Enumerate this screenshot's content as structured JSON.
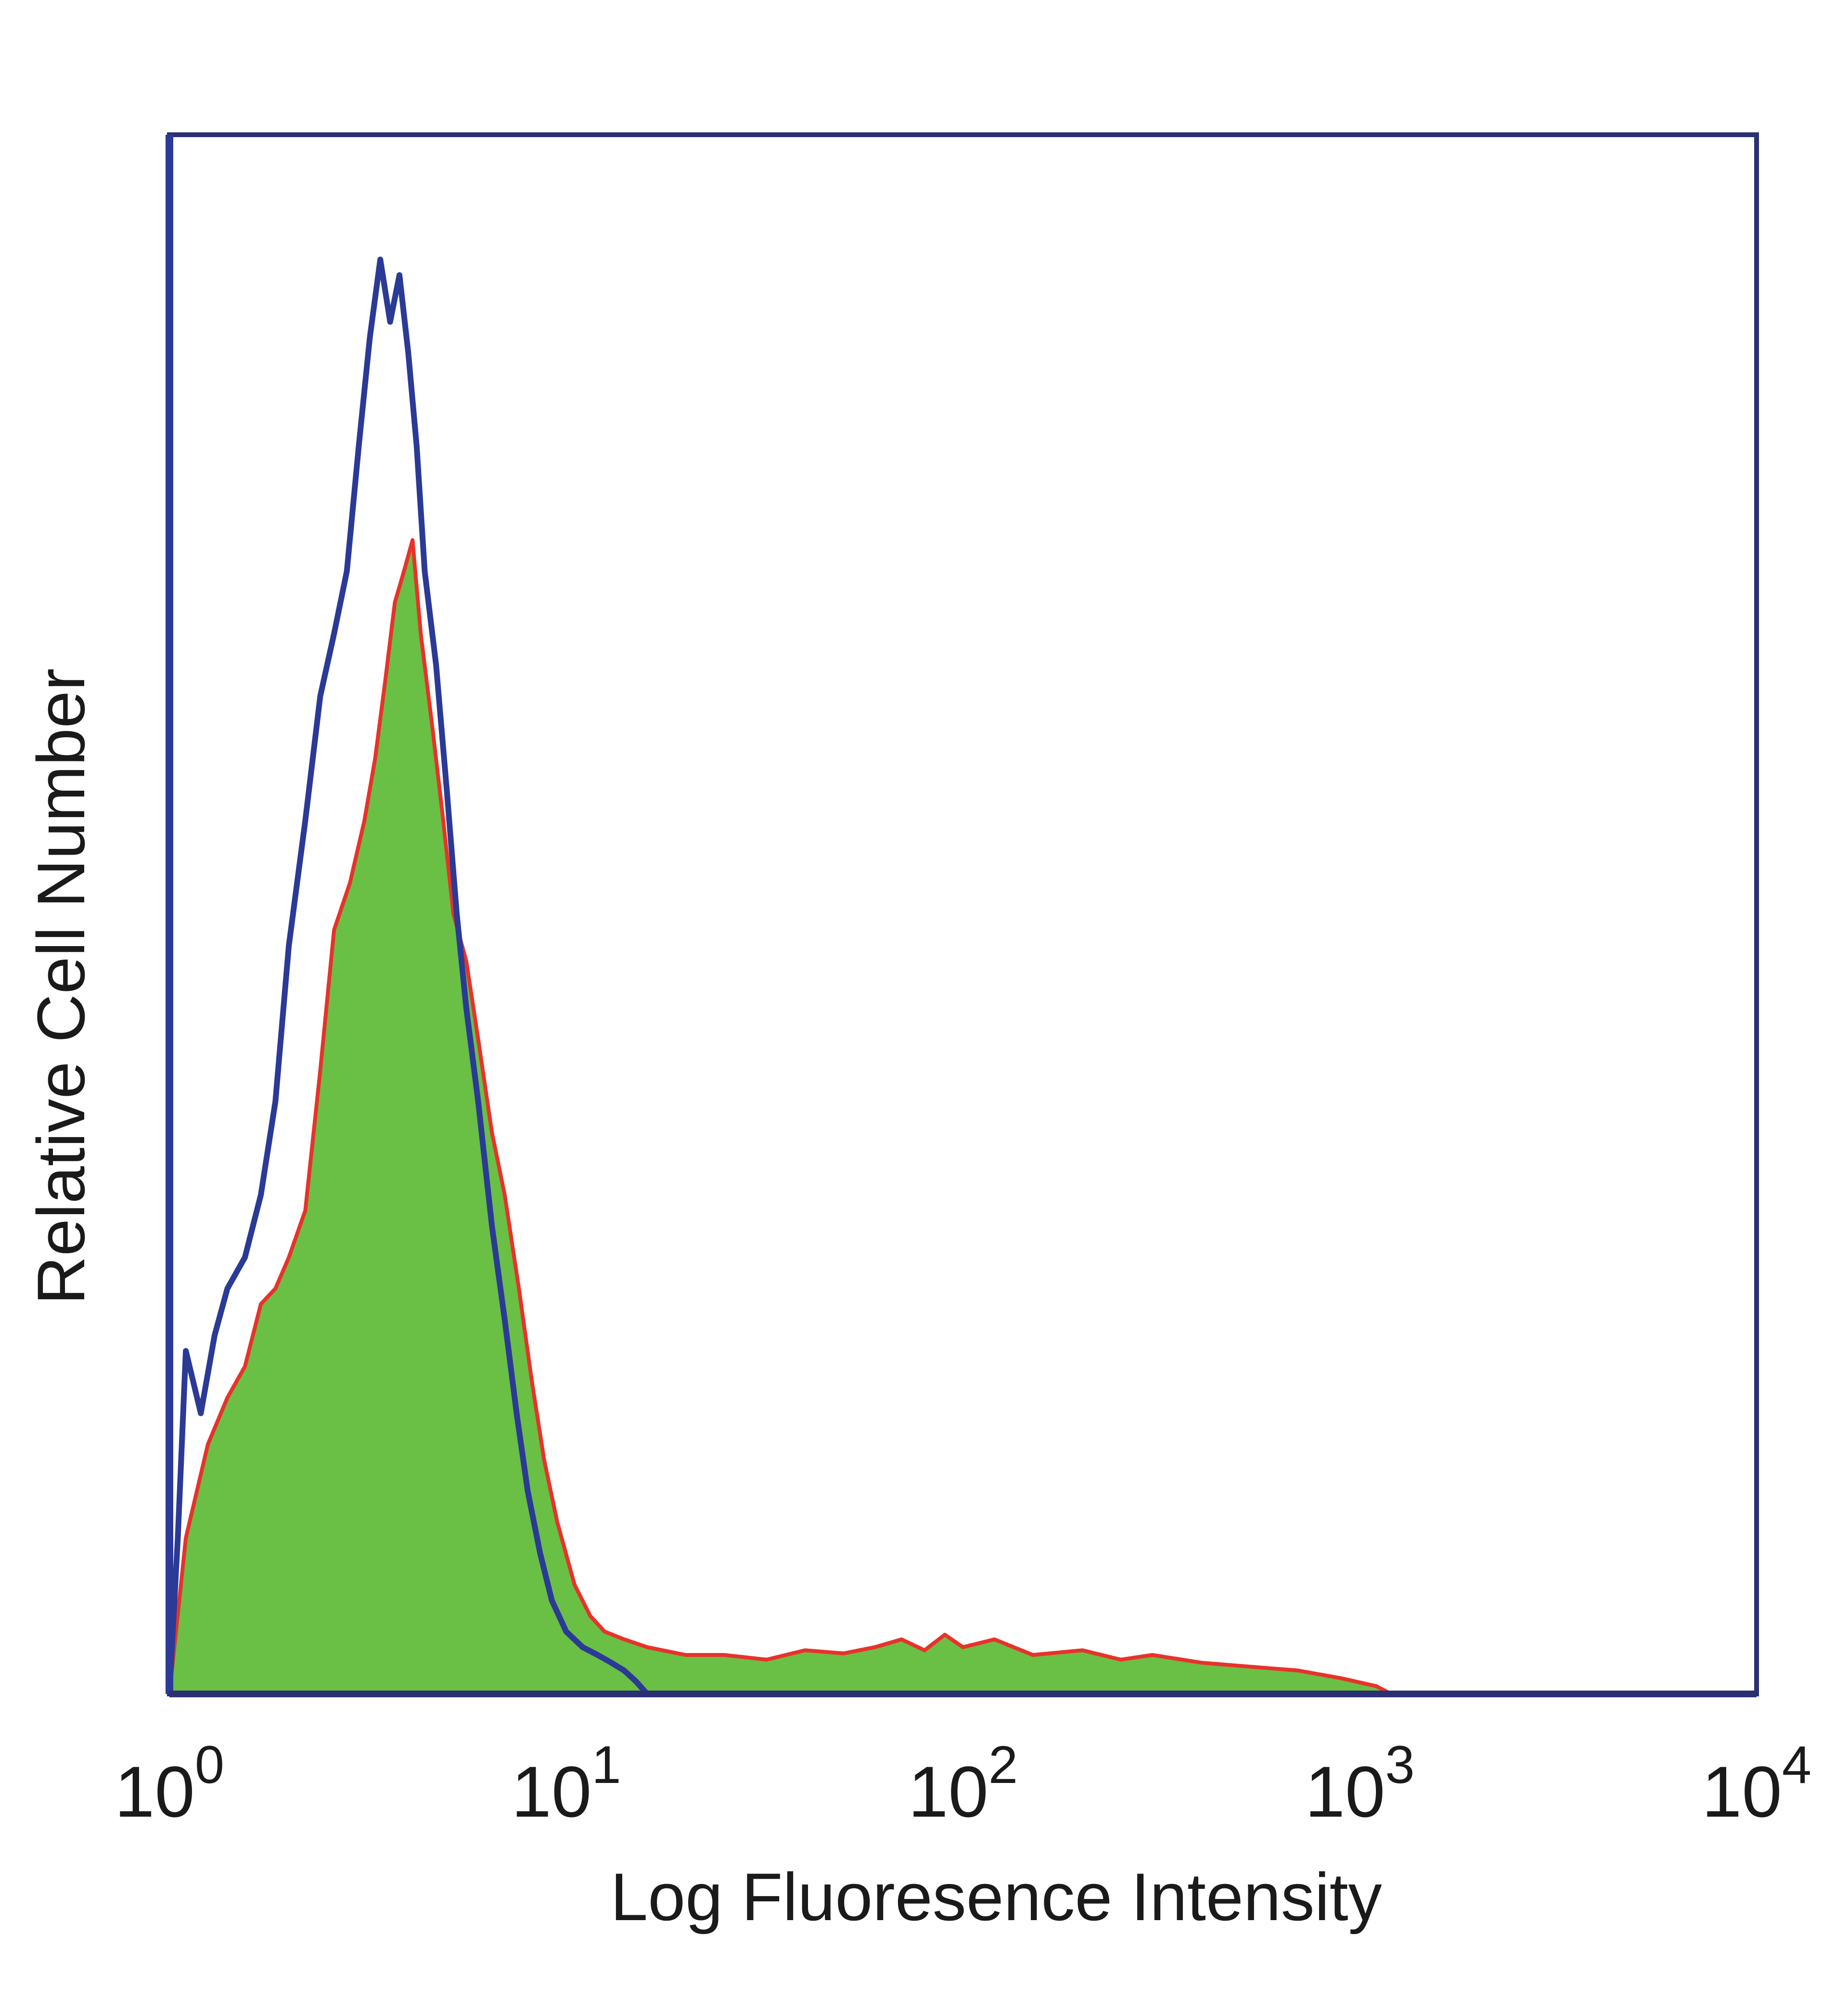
{
  "chart_data": {
    "type": "area",
    "title": "",
    "xlabel": "Log Fluoresence Intensity",
    "ylabel": "Relative Cell Number",
    "x_scale": "log",
    "xlim": [
      1,
      10000
    ],
    "ylim": [
      0,
      1
    ],
    "grid": false,
    "legend": "none",
    "x_ticks": [
      {
        "base": "10",
        "exp": "0",
        "value": 1
      },
      {
        "base": "10",
        "exp": "1",
        "value": 10
      },
      {
        "base": "10",
        "exp": "2",
        "value": 100
      },
      {
        "base": "10",
        "exp": "3",
        "value": 1000
      },
      {
        "base": "10",
        "exp": "4",
        "value": 10000
      }
    ],
    "series": [
      {
        "style": "filled",
        "color": "#6abf45",
        "edge_color": "#e8322a",
        "x": [
          1.0,
          1.1,
          1.25,
          1.4,
          1.55,
          1.7,
          1.85,
          2.0,
          2.2,
          2.4,
          2.6,
          2.85,
          3.1,
          3.3,
          3.5,
          3.7,
          3.9,
          4.1,
          4.3,
          4.6,
          4.9,
          5.2,
          5.6,
          6.0,
          6.5,
          7.0,
          7.6,
          8.2,
          8.8,
          9.5,
          10.5,
          11.5,
          12.5,
          14.0,
          16.0,
          20.0,
          25.0,
          32.0,
          40.0,
          50.0,
          60.0,
          70.0,
          80.0,
          90.0,
          100.0,
          120.0,
          150.0,
          200.0,
          250.0,
          300.0,
          400.0,
          500.0,
          700.0,
          900.0,
          1100.0,
          1200.0
        ],
        "values": [
          0.0,
          0.1,
          0.16,
          0.19,
          0.21,
          0.25,
          0.26,
          0.28,
          0.31,
          0.4,
          0.49,
          0.52,
          0.56,
          0.6,
          0.65,
          0.7,
          0.72,
          0.74,
          0.68,
          0.62,
          0.56,
          0.5,
          0.47,
          0.42,
          0.36,
          0.32,
          0.26,
          0.2,
          0.15,
          0.11,
          0.07,
          0.05,
          0.04,
          0.035,
          0.03,
          0.025,
          0.025,
          0.022,
          0.028,
          0.026,
          0.03,
          0.035,
          0.028,
          0.038,
          0.03,
          0.035,
          0.025,
          0.028,
          0.022,
          0.025,
          0.02,
          0.018,
          0.015,
          0.01,
          0.005,
          0.0
        ]
      },
      {
        "style": "outline",
        "color": "#2b3a96",
        "x": [
          1.0,
          1.05,
          1.1,
          1.2,
          1.3,
          1.4,
          1.55,
          1.7,
          1.85,
          2.0,
          2.2,
          2.4,
          2.6,
          2.8,
          3.0,
          3.2,
          3.4,
          3.6,
          3.8,
          4.0,
          4.2,
          4.4,
          4.7,
          5.0,
          5.3,
          5.6,
          6.0,
          6.5,
          7.0,
          7.5,
          8.0,
          8.6,
          9.2,
          10.0,
          11.0,
          12.0,
          13.0,
          14.0,
          15.0,
          16.0
        ],
        "values": [
          0.0,
          0.1,
          0.22,
          0.18,
          0.23,
          0.26,
          0.28,
          0.32,
          0.38,
          0.48,
          0.56,
          0.64,
          0.68,
          0.72,
          0.8,
          0.87,
          0.92,
          0.88,
          0.91,
          0.86,
          0.8,
          0.72,
          0.66,
          0.58,
          0.5,
          0.44,
          0.38,
          0.3,
          0.24,
          0.18,
          0.13,
          0.09,
          0.06,
          0.04,
          0.03,
          0.025,
          0.02,
          0.015,
          0.008,
          0.0
        ]
      }
    ]
  }
}
